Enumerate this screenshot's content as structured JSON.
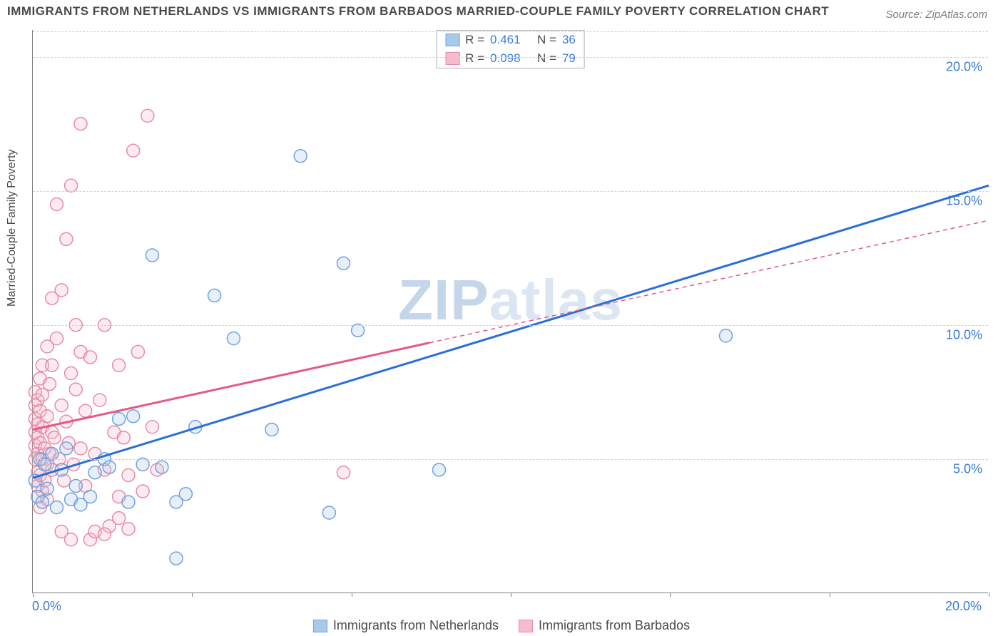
{
  "title": "IMMIGRANTS FROM NETHERLANDS VS IMMIGRANTS FROM BARBADOS MARRIED-COUPLE FAMILY POVERTY CORRELATION CHART",
  "source": "Source: ZipAtlas.com",
  "ylabel": "Married-Couple Family Poverty",
  "watermark_a": "ZIP",
  "watermark_b": "atlas",
  "chart": {
    "type": "scatter",
    "xlim": [
      0,
      20
    ],
    "ylim": [
      0,
      21
    ],
    "x_ticks": [
      0,
      3.33,
      6.67,
      10,
      13.33,
      16.67,
      20
    ],
    "x_tick_labels": {
      "0": "0.0%",
      "20": "20.0%"
    },
    "y_gridlines": [
      5,
      10,
      15,
      20
    ],
    "y_tick_labels": {
      "5": "5.0%",
      "10": "10.0%",
      "15": "15.0%",
      "20": "20.0%"
    },
    "background_color": "#ffffff",
    "grid_color": "#d0d0d0",
    "axis_color": "#808080",
    "marker_radius": 9,
    "marker_stroke_width": 1.5,
    "marker_fill_opacity": 0.28,
    "series": [
      {
        "name": "Immigrants from Netherlands",
        "color_stroke": "#6fa3de",
        "color_fill": "#a9c8ea",
        "regression": {
          "x1": 0,
          "y1": 4.3,
          "x2": 20,
          "y2": 15.2,
          "solid_until_x": 20,
          "color": "#2a6fd6",
          "width": 3
        },
        "R": "0.461",
        "N": "36",
        "points": [
          [
            0.05,
            4.2
          ],
          [
            0.1,
            3.6
          ],
          [
            0.15,
            5.0
          ],
          [
            0.2,
            3.4
          ],
          [
            0.25,
            4.8
          ],
          [
            0.3,
            3.9
          ],
          [
            0.5,
            3.2
          ],
          [
            0.6,
            4.6
          ],
          [
            0.7,
            5.4
          ],
          [
            0.8,
            3.5
          ],
          [
            0.9,
            4.0
          ],
          [
            1.0,
            3.3
          ],
          [
            1.2,
            3.6
          ],
          [
            1.3,
            4.5
          ],
          [
            1.5,
            5.0
          ],
          [
            1.6,
            4.7
          ],
          [
            1.8,
            6.5
          ],
          [
            2.0,
            3.4
          ],
          [
            2.1,
            6.6
          ],
          [
            2.3,
            4.8
          ],
          [
            2.5,
            12.6
          ],
          [
            2.7,
            4.7
          ],
          [
            3.0,
            3.4
          ],
          [
            3.2,
            3.7
          ],
          [
            3.0,
            1.3
          ],
          [
            3.4,
            6.2
          ],
          [
            3.8,
            11.1
          ],
          [
            4.2,
            9.5
          ],
          [
            5.0,
            6.1
          ],
          [
            5.6,
            16.3
          ],
          [
            6.2,
            3.0
          ],
          [
            6.5,
            12.3
          ],
          [
            6.8,
            9.8
          ],
          [
            8.5,
            4.6
          ],
          [
            14.5,
            9.6
          ],
          [
            0.4,
            5.2
          ]
        ]
      },
      {
        "name": "Immigrants from Barbados",
        "color_stroke": "#e98aa4",
        "color_fill": "#f4bccd",
        "regression": {
          "x1": 0,
          "y1": 6.1,
          "x2": 20,
          "y2": 13.9,
          "solid_until_x": 8.3,
          "color": "#e35a82",
          "width": 3
        },
        "R": "0.098",
        "N": "79",
        "points": [
          [
            0.05,
            5.0
          ],
          [
            0.05,
            5.5
          ],
          [
            0.05,
            6.0
          ],
          [
            0.05,
            6.5
          ],
          [
            0.05,
            7.0
          ],
          [
            0.05,
            7.5
          ],
          [
            0.1,
            4.0
          ],
          [
            0.1,
            4.5
          ],
          [
            0.1,
            5.2
          ],
          [
            0.1,
            5.8
          ],
          [
            0.1,
            6.3
          ],
          [
            0.1,
            7.2
          ],
          [
            0.15,
            4.4
          ],
          [
            0.15,
            5.6
          ],
          [
            0.15,
            6.8
          ],
          [
            0.15,
            8.0
          ],
          [
            0.2,
            3.8
          ],
          [
            0.2,
            5.0
          ],
          [
            0.2,
            6.2
          ],
          [
            0.2,
            7.4
          ],
          [
            0.2,
            8.5
          ],
          [
            0.25,
            4.2
          ],
          [
            0.25,
            5.4
          ],
          [
            0.3,
            4.8
          ],
          [
            0.3,
            6.6
          ],
          [
            0.3,
            9.2
          ],
          [
            0.35,
            5.2
          ],
          [
            0.35,
            7.8
          ],
          [
            0.4,
            4.6
          ],
          [
            0.4,
            6.0
          ],
          [
            0.4,
            8.5
          ],
          [
            0.4,
            11.0
          ],
          [
            0.45,
            5.8
          ],
          [
            0.5,
            9.5
          ],
          [
            0.5,
            14.5
          ],
          [
            0.55,
            5.0
          ],
          [
            0.6,
            7.0
          ],
          [
            0.6,
            11.3
          ],
          [
            0.65,
            4.2
          ],
          [
            0.7,
            6.4
          ],
          [
            0.7,
            13.2
          ],
          [
            0.75,
            5.6
          ],
          [
            0.8,
            8.2
          ],
          [
            0.8,
            15.2
          ],
          [
            0.85,
            4.8
          ],
          [
            0.9,
            7.6
          ],
          [
            0.9,
            10.0
          ],
          [
            1.0,
            5.4
          ],
          [
            1.0,
            9.0
          ],
          [
            1.0,
            17.5
          ],
          [
            1.1,
            4.0
          ],
          [
            1.1,
            6.8
          ],
          [
            1.2,
            8.8
          ],
          [
            1.2,
            2.0
          ],
          [
            1.3,
            5.2
          ],
          [
            1.3,
            2.3
          ],
          [
            1.4,
            7.2
          ],
          [
            1.5,
            4.6
          ],
          [
            1.5,
            10.0
          ],
          [
            1.6,
            2.5
          ],
          [
            1.7,
            6.0
          ],
          [
            1.8,
            8.5
          ],
          [
            1.8,
            3.6
          ],
          [
            1.9,
            5.8
          ],
          [
            2.0,
            4.4
          ],
          [
            2.1,
            16.5
          ],
          [
            2.2,
            9.0
          ],
          [
            2.3,
            3.8
          ],
          [
            2.4,
            17.8
          ],
          [
            2.5,
            6.2
          ],
          [
            2.6,
            4.6
          ],
          [
            0.6,
            2.3
          ],
          [
            0.8,
            2.0
          ],
          [
            1.5,
            2.2
          ],
          [
            1.8,
            2.8
          ],
          [
            2.0,
            2.4
          ],
          [
            6.5,
            4.5
          ],
          [
            0.3,
            3.5
          ],
          [
            0.15,
            3.2
          ]
        ]
      }
    ]
  },
  "legend_top": {
    "rows": [
      {
        "series_idx": 0,
        "R_label": "R  =",
        "N_label": "N  ="
      },
      {
        "series_idx": 1,
        "R_label": "R  =",
        "N_label": "N  ="
      }
    ]
  },
  "colors": {
    "title": "#4a4a4a",
    "source": "#808080",
    "tick_label": "#3a7bd5"
  },
  "fonts": {
    "title_size": 17,
    "label_size": 16,
    "tick_size": 18,
    "legend_size": 17
  }
}
